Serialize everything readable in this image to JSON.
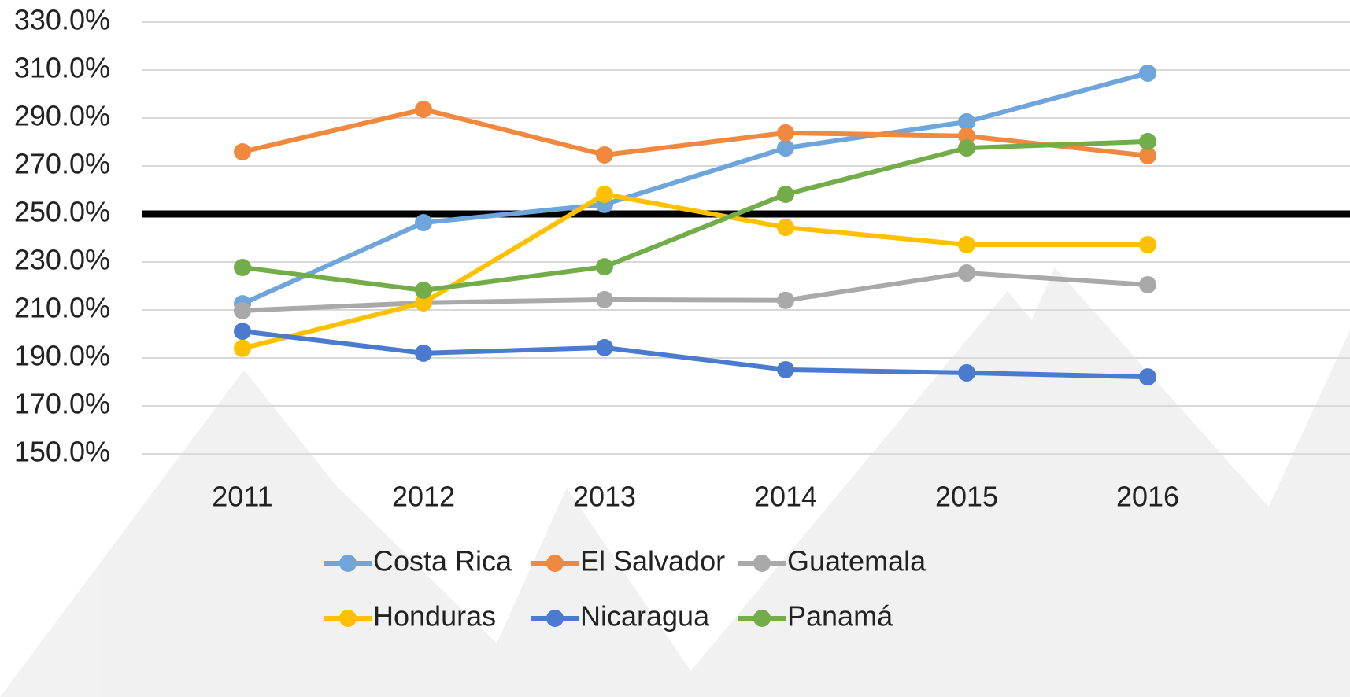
{
  "chart_data": {
    "type": "line",
    "categories": [
      "2011",
      "2012",
      "2013",
      "2014",
      "2015",
      "2016"
    ],
    "series": [
      {
        "name": "Costa Rica",
        "color": "#6ea6dc",
        "values": [
          212.6,
          246.4,
          254.0,
          277.5,
          288.4,
          308.7
        ]
      },
      {
        "name": "El Salvador",
        "color": "#f0883e",
        "values": [
          275.9,
          293.6,
          274.6,
          283.8,
          282.5,
          274.3
        ]
      },
      {
        "name": "Guatemala",
        "color": "#a9a9a9",
        "values": [
          209.7,
          213.0,
          214.3,
          214.0,
          225.4,
          220.5
        ]
      },
      {
        "name": "Honduras",
        "color": "#ffc000",
        "values": [
          194.0,
          213.0,
          258.2,
          244.4,
          237.2,
          237.2
        ]
      },
      {
        "name": "Nicaragua",
        "color": "#4a7bcf",
        "values": [
          201.1,
          192.0,
          194.3,
          185.1,
          183.8,
          182.1
        ]
      },
      {
        "name": "Panamá",
        "color": "#72ad4a",
        "values": [
          227.7,
          218.2,
          228.0,
          258.2,
          277.5,
          280.2
        ]
      }
    ],
    "ylim": [
      150,
      330
    ],
    "yticks": [
      {
        "value": 150,
        "label": "150.0%"
      },
      {
        "value": 170,
        "label": "170.0%"
      },
      {
        "value": 190,
        "label": "190.0%"
      },
      {
        "value": 210,
        "label": "210.0%"
      },
      {
        "value": 230,
        "label": "230.0%"
      },
      {
        "value": 250,
        "label": "250.0%"
      },
      {
        "value": 270,
        "label": "270.0%"
      },
      {
        "value": 290,
        "label": "290.0%"
      },
      {
        "value": 310,
        "label": "310.0%"
      },
      {
        "value": 330,
        "label": "330.0%"
      }
    ],
    "grid": true,
    "reference_line": 250,
    "legend": "bottom"
  }
}
